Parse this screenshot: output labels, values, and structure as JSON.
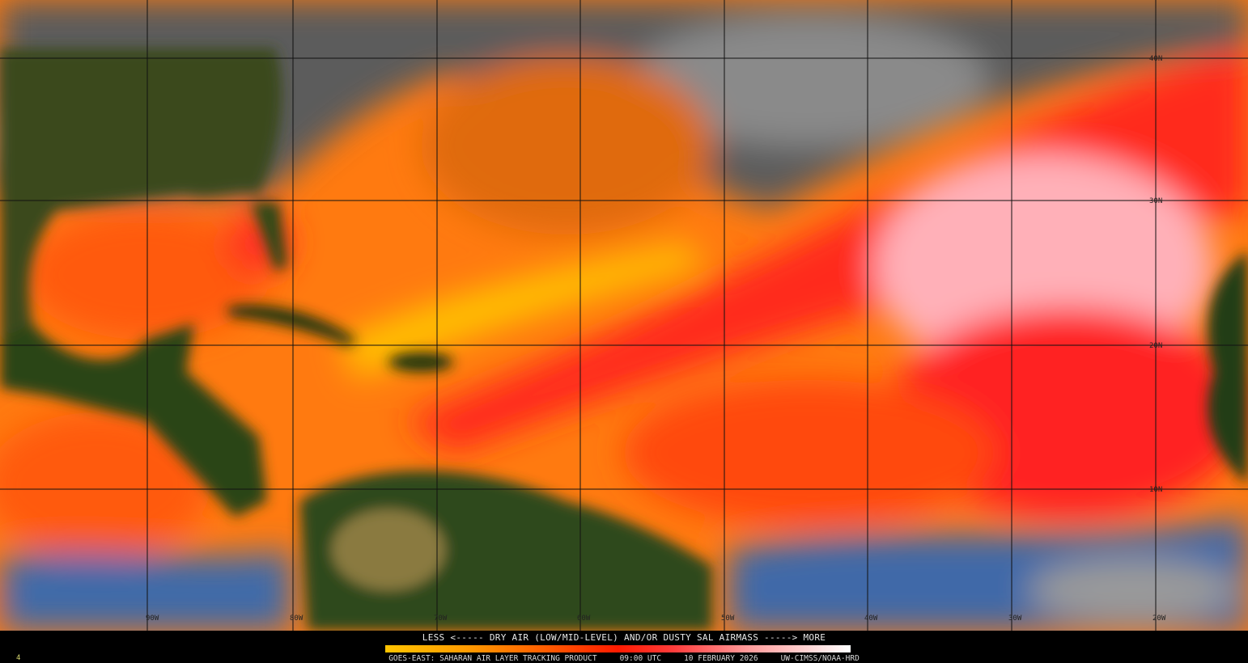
{
  "map": {
    "satellite": "GOES-EAST",
    "product": "SAHARAN AIR LAYER TRACKING PRODUCT",
    "latitude_labels": [
      "40N",
      "30N",
      "20N",
      "10N"
    ],
    "longitude_labels": [
      "90W",
      "80W",
      "70W",
      "60W",
      "50W",
      "40W",
      "30W",
      "20W"
    ]
  },
  "legend": {
    "title": "LESS <----- DRY AIR (LOW/MID-LEVEL) AND/OR DUSTY SAL AIRMASS -----> MORE",
    "colors": [
      "#ffc400",
      "#ff9a00",
      "#ff5a00",
      "#ff1a00",
      "#ff9a9a",
      "#ffffff"
    ]
  },
  "footer": {
    "product_label": "GOES-EAST: SAHARAN AIR LAYER TRACKING PRODUCT",
    "time": "09:00 UTC",
    "date": "10 FEBRUARY 2026",
    "credit": "UW-CIMSS/NOAA-HRD",
    "frame_number": "4"
  }
}
